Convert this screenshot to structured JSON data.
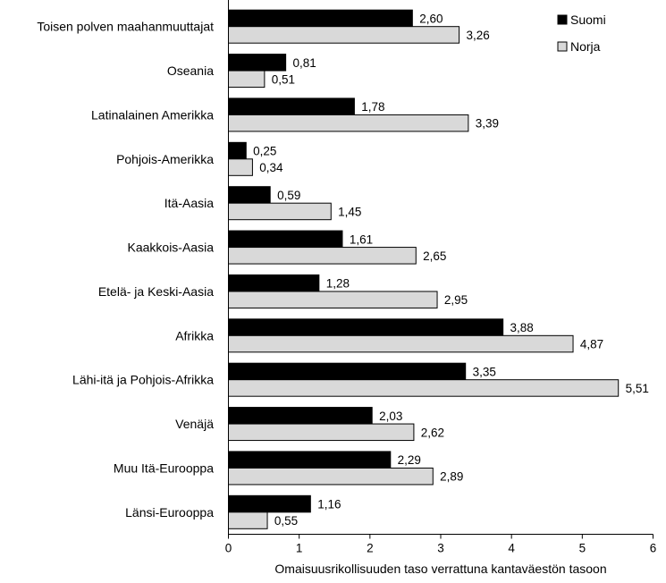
{
  "chart_data": {
    "type": "bar",
    "orientation": "horizontal",
    "categories": [
      "Toisen polven maahanmuuttajat",
      "Oseania",
      "Latinalainen Amerikka",
      "Pohjois-Amerikka",
      "Itä-Aasia",
      "Kaakkois-Aasia",
      "Etelä- ja Keski-Aasia",
      "Afrikka",
      "Lähi-itä ja Pohjois-Afrikka",
      "Venäjä",
      "Muu Itä-Eurooppa",
      "Länsi-Eurooppa"
    ],
    "series": [
      {
        "name": "Suomi",
        "color": "#000000",
        "values": [
          2.6,
          0.81,
          1.78,
          0.25,
          0.59,
          1.61,
          1.28,
          3.88,
          3.35,
          2.03,
          2.29,
          1.16
        ],
        "labels": [
          "2,60",
          "0,81",
          "1,78",
          "0,25",
          "0,59",
          "1,61",
          "1,28",
          "3,88",
          "3,35",
          "2,03",
          "2,29",
          "1,16"
        ]
      },
      {
        "name": "Norja",
        "color": "#d9d9d9",
        "values": [
          3.26,
          0.51,
          3.39,
          0.34,
          1.45,
          2.65,
          2.95,
          4.87,
          5.51,
          2.62,
          2.89,
          0.55
        ],
        "labels": [
          "3,26",
          "0,51",
          "3,39",
          "0,34",
          "1,45",
          "2,65",
          "2,95",
          "4,87",
          "5,51",
          "2,62",
          "2,89",
          "0,55"
        ]
      }
    ],
    "xlabel": "Omaisuusrikollisuuden  taso  verrattuna  kantaväestön  tasoon",
    "xlim": [
      0,
      6
    ],
    "xticks": [
      "0",
      "1",
      "2",
      "3",
      "4",
      "5",
      "6"
    ],
    "grid": false,
    "legend_position": "top-right"
  }
}
